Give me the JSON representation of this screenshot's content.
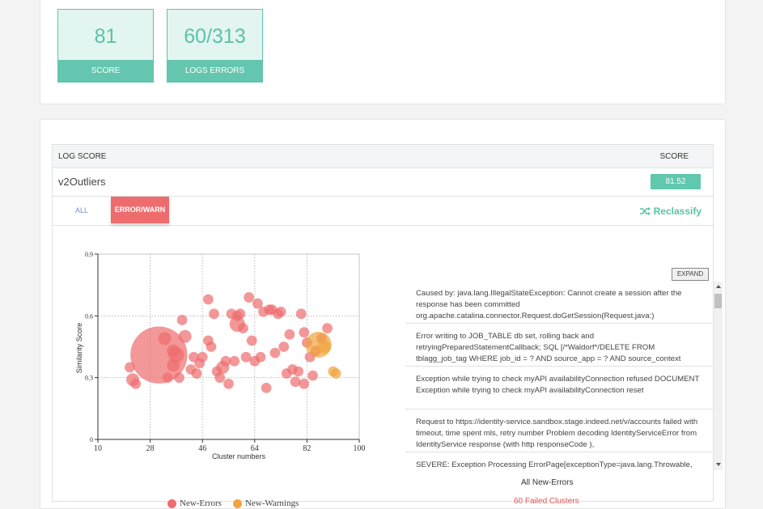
{
  "stats": {
    "score": {
      "value": "81",
      "label": "SCORE"
    },
    "logs_errors": {
      "value": "60/313",
      "label": "LOGS ERRORS"
    }
  },
  "table": {
    "header_log_score": "LOG SCORE",
    "header_score": "SCORE",
    "row_name": "v2Outliers",
    "row_score": "81.52"
  },
  "tabs": {
    "all": "ALL",
    "error_warn": "ERROR/WARN"
  },
  "reclassify_label": "Reclassify",
  "expand_label": "EXPAND",
  "logs": [
    "Caused by: java.lang.IllegalStateException: Cannot create a session after the response has been committed org.apache.catalina.connector.Request.doGetSession(Request.java:)",
    "Error writing to JOB_TABLE db set, rolling back and retryingPreparedStatementCallback; SQL [/*Waldorf*/DELETE FROM tblagg_job_tag WHERE job_id = ? AND source_app = ? AND source_context",
    "Exception while trying to check myAPI availabilityConnection refused DOCUMENT Exception while trying to check myAPI availabilityConnection reset",
    "Request to https://identity-service.sandbox.stage.indeed.net/v/accounts failed with timeout, time spent mls, retry number Problem decoding IdentityServiceError from IdentityService response (with http responseCode ),",
    "SEVERE: Exception Processing ErrorPage[exceptionType=java.lang.Throwable, location=/errors/error.jsp]"
  ],
  "all_new_errors_label": "All New-Errors",
  "failed_clusters_label": "60 Failed Clusters",
  "colors": {
    "accent": "#5cc1a8",
    "error": "#ee6c6e",
    "warning": "#f0a43c"
  },
  "chart_data": {
    "type": "scatter",
    "xlabel": "Cluster numbers",
    "ylabel": "Similarity Score",
    "xlim": [
      10,
      100
    ],
    "ylim": [
      0,
      0.9
    ],
    "xticks": [
      "10",
      "28",
      "46",
      "64",
      "82",
      "100"
    ],
    "yticks": [
      "0",
      "0.3",
      "0.6",
      "0.9"
    ],
    "grid": true,
    "legend_position": "bottom",
    "series": [
      {
        "name": "New-Errors",
        "color": "#ee6c6e",
        "points": [
          [
            31,
            0.41,
            22
          ],
          [
            21,
            0.35,
            4
          ],
          [
            22,
            0.29,
            5
          ],
          [
            23,
            0.27,
            4
          ],
          [
            33,
            0.49,
            5
          ],
          [
            34,
            0.3,
            4
          ],
          [
            36,
            0.36,
            5
          ],
          [
            37,
            0.41,
            6
          ],
          [
            36,
            0.43,
            5
          ],
          [
            38,
            0.3,
            4
          ],
          [
            39,
            0.58,
            4
          ],
          [
            40,
            0.5,
            5
          ],
          [
            42,
            0.34,
            4
          ],
          [
            43,
            0.4,
            4
          ],
          [
            44,
            0.32,
            4
          ],
          [
            45,
            0.37,
            4
          ],
          [
            46,
            0.4,
            4
          ],
          [
            48,
            0.68,
            4
          ],
          [
            48,
            0.48,
            4
          ],
          [
            49,
            0.45,
            4
          ],
          [
            50,
            0.61,
            4
          ],
          [
            51,
            0.33,
            4
          ],
          [
            52,
            0.3,
            4
          ],
          [
            53,
            0.35,
            5
          ],
          [
            54,
            0.38,
            4
          ],
          [
            55,
            0.27,
            4
          ],
          [
            56,
            0.61,
            4
          ],
          [
            57,
            0.38,
            4
          ],
          [
            58,
            0.6,
            4
          ],
          [
            58,
            0.56,
            6
          ],
          [
            59,
            0.61,
            4
          ],
          [
            60,
            0.54,
            4
          ],
          [
            61,
            0.4,
            4
          ],
          [
            62,
            0.69,
            4
          ],
          [
            63,
            0.48,
            4
          ],
          [
            64,
            0.38,
            4
          ],
          [
            65,
            0.66,
            4
          ],
          [
            66,
            0.4,
            4
          ],
          [
            67,
            0.62,
            4
          ],
          [
            68,
            0.25,
            4
          ],
          [
            69,
            0.63,
            4
          ],
          [
            70,
            0.63,
            4
          ],
          [
            71,
            0.42,
            4
          ],
          [
            72,
            0.61,
            4
          ],
          [
            73,
            0.62,
            4
          ],
          [
            74,
            0.45,
            4
          ],
          [
            76,
            0.51,
            4
          ],
          [
            75,
            0.32,
            4
          ],
          [
            77,
            0.34,
            4
          ],
          [
            78,
            0.28,
            4
          ],
          [
            79,
            0.33,
            4
          ],
          [
            80,
            0.61,
            4
          ],
          [
            81,
            0.52,
            4
          ],
          [
            81,
            0.27,
            4
          ],
          [
            82,
            0.47,
            4
          ],
          [
            83,
            0.4,
            4
          ],
          [
            84,
            0.31,
            4
          ],
          [
            85,
            0.43,
            4
          ],
          [
            87,
            0.49,
            4
          ],
          [
            89,
            0.54,
            4
          ]
        ]
      },
      {
        "name": "New-Warnings",
        "color": "#f0a43c",
        "points": [
          [
            86,
            0.46,
            10
          ],
          [
            88,
            0.45,
            5
          ],
          [
            91,
            0.33,
            4
          ],
          [
            92,
            0.32,
            4
          ]
        ]
      }
    ]
  }
}
